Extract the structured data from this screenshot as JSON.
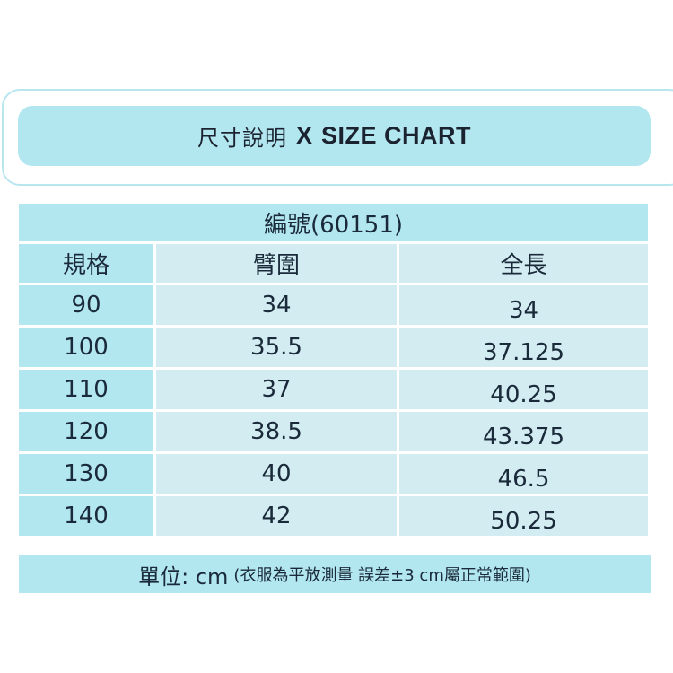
{
  "banner": {
    "title_cn": "尺寸說明",
    "separator": "X",
    "title_en": "SIZE CHART"
  },
  "table": {
    "title": "編號(60151)",
    "headers": [
      "規格",
      "臂圍",
      "全長"
    ],
    "rows": [
      [
        "90",
        "34",
        "34"
      ],
      [
        "100",
        "35.5",
        "37.125"
      ],
      [
        "110",
        "37",
        "40.25"
      ],
      [
        "120",
        "38.5",
        "43.375"
      ],
      [
        "130",
        "40",
        "46.5"
      ],
      [
        "140",
        "42",
        "50.25"
      ]
    ]
  },
  "note": {
    "unit_label": "單位: cm",
    "detail": "(衣服為平放測量 誤差±3 cm屬正常範圍)"
  },
  "colors": {
    "accent": "#b2e7f0",
    "cell": "#d2ecf1",
    "border": "#b8e6ee",
    "text": "#1a2a3a"
  }
}
